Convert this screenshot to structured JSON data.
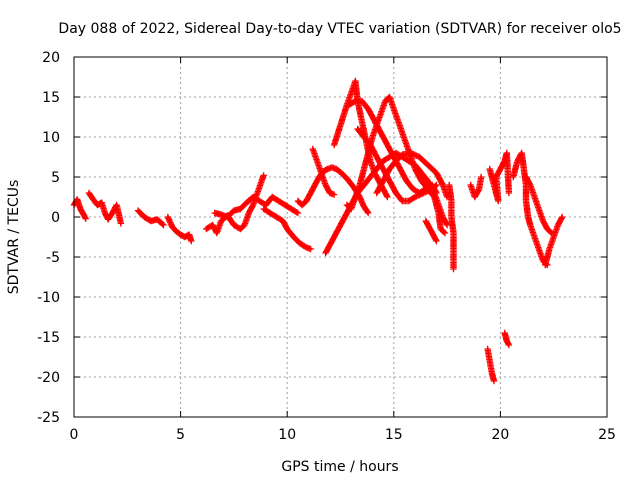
{
  "chart_data": {
    "type": "scatter",
    "title": "Day 088 of 2022, Sidereal Day-to-day VTEC variation (SDTVAR) for receiver olo5",
    "xlabel": "GPS time / hours",
    "ylabel": "SDTVAR / TECUs",
    "xlim": [
      0,
      25
    ],
    "ylim": [
      -25,
      20
    ],
    "xticks": [
      0,
      5,
      10,
      15,
      20,
      25
    ],
    "yticks": [
      -25,
      -20,
      -15,
      -10,
      -5,
      0,
      5,
      10,
      15,
      20
    ],
    "grid": true,
    "marker": "+",
    "series": [
      {
        "name": "SDTVAR",
        "color": "#ff0000",
        "segments": [
          [
            [
              0.0,
              1.5
            ],
            [
              0.15,
              2.2
            ],
            [
              0.3,
              1.0
            ],
            [
              0.45,
              0.3
            ],
            [
              0.55,
              -0.2
            ]
          ],
          [
            [
              0.7,
              3.0
            ],
            [
              0.9,
              2.2
            ],
            [
              1.1,
              1.5
            ],
            [
              1.3,
              1.8
            ],
            [
              1.45,
              0.5
            ],
            [
              1.6,
              -0.3
            ],
            [
              1.8,
              0.5
            ],
            [
              2.0,
              1.5
            ],
            [
              2.2,
              -0.8
            ]
          ],
          [
            [
              3.0,
              0.8
            ],
            [
              3.3,
              0.0
            ],
            [
              3.6,
              -0.5
            ],
            [
              3.9,
              -0.3
            ],
            [
              4.2,
              -1.0
            ]
          ],
          [
            [
              4.4,
              0.0
            ],
            [
              4.6,
              -1.2
            ],
            [
              4.8,
              -1.8
            ],
            [
              5.0,
              -2.2
            ],
            [
              5.2,
              -2.5
            ],
            [
              5.4,
              -2.2
            ],
            [
              5.5,
              -3.0
            ]
          ],
          [
            [
              6.2,
              -1.5
            ],
            [
              6.5,
              -1.0
            ],
            [
              6.7,
              -2.0
            ],
            [
              6.9,
              -0.5
            ],
            [
              7.2,
              0.2
            ],
            [
              7.5,
              -1.0
            ],
            [
              7.8,
              -1.5
            ],
            [
              8.0,
              -1.0
            ],
            [
              8.2,
              0.5
            ],
            [
              8.4,
              1.5
            ],
            [
              8.6,
              3.0
            ],
            [
              8.8,
              4.5
            ],
            [
              8.9,
              5.2
            ]
          ],
          [
            [
              6.6,
              0.5
            ],
            [
              6.9,
              0.3
            ],
            [
              7.2,
              0.0
            ],
            [
              7.5,
              0.8
            ],
            [
              7.8,
              1.0
            ],
            [
              8.1,
              1.8
            ],
            [
              8.4,
              2.5
            ],
            [
              8.7,
              2.0
            ],
            [
              9.0,
              1.5
            ],
            [
              9.3,
              2.5
            ],
            [
              9.6,
              2.0
            ],
            [
              9.9,
              1.5
            ],
            [
              10.2,
              1.0
            ],
            [
              10.5,
              0.5
            ]
          ],
          [
            [
              8.9,
              1.0
            ],
            [
              9.2,
              0.5
            ],
            [
              9.5,
              0.0
            ],
            [
              9.8,
              -0.5
            ],
            [
              10.0,
              -1.5
            ],
            [
              10.3,
              -2.5
            ],
            [
              10.6,
              -3.3
            ],
            [
              10.9,
              -3.8
            ],
            [
              11.1,
              -4.0
            ]
          ],
          [
            [
              10.5,
              2.0
            ],
            [
              10.7,
              1.5
            ],
            [
              10.9,
              2.0
            ],
            [
              11.1,
              3.0
            ],
            [
              11.3,
              4.0
            ],
            [
              11.5,
              5.0
            ],
            [
              11.7,
              5.7
            ],
            [
              11.9,
              6.0
            ],
            [
              12.1,
              6.2
            ],
            [
              12.3,
              6.0
            ],
            [
              12.5,
              5.6
            ],
            [
              12.8,
              4.8
            ],
            [
              13.1,
              3.8
            ],
            [
              13.4,
              2.5
            ],
            [
              13.6,
              1.3
            ],
            [
              13.8,
              0.5
            ]
          ],
          [
            [
              11.2,
              8.5
            ],
            [
              11.4,
              7.0
            ],
            [
              11.6,
              5.5
            ],
            [
              11.8,
              4.0
            ],
            [
              12.0,
              3.0
            ],
            [
              12.2,
              2.8
            ]
          ],
          [
            [
              11.8,
              -4.5
            ],
            [
              12.1,
              -3.0
            ],
            [
              12.4,
              -1.5
            ],
            [
              12.7,
              0.0
            ],
            [
              12.9,
              1.0
            ],
            [
              13.1,
              2.0
            ],
            [
              13.3,
              3.0
            ],
            [
              13.6,
              4.0
            ],
            [
              13.9,
              5.0
            ],
            [
              14.2,
              6.0
            ],
            [
              14.5,
              7.0
            ],
            [
              14.8,
              7.5
            ],
            [
              15.1,
              8.0
            ],
            [
              15.4,
              7.5
            ],
            [
              15.7,
              7.0
            ],
            [
              16.0,
              6.5
            ],
            [
              16.3,
              5.5
            ],
            [
              16.6,
              4.5
            ],
            [
              16.9,
              3.0
            ],
            [
              17.1,
              1.5
            ],
            [
              17.3,
              0.0
            ],
            [
              17.5,
              -1.0
            ]
          ],
          [
            [
              12.2,
              9.0
            ],
            [
              12.5,
              11.5
            ],
            [
              12.8,
              14.0
            ],
            [
              13.0,
              15.5
            ],
            [
              13.2,
              17.0
            ],
            [
              13.3,
              14.5
            ],
            [
              13.5,
              12.0
            ],
            [
              13.7,
              9.5
            ],
            [
              13.9,
              7.0
            ],
            [
              14.1,
              5.5
            ],
            [
              14.3,
              4.5
            ],
            [
              14.5,
              3.5
            ],
            [
              14.7,
              2.5
            ]
          ],
          [
            [
              12.8,
              1.5
            ],
            [
              13.0,
              1.0
            ],
            [
              13.2,
              2.5
            ],
            [
              13.4,
              4.0
            ],
            [
              13.6,
              6.0
            ],
            [
              13.8,
              8.0
            ],
            [
              14.0,
              10.0
            ],
            [
              14.2,
              11.5
            ],
            [
              14.4,
              13.0
            ],
            [
              14.6,
              14.5
            ],
            [
              14.8,
              15.0
            ],
            [
              15.0,
              13.5
            ],
            [
              15.2,
              12.0
            ],
            [
              15.4,
              10.5
            ],
            [
              15.6,
              9.0
            ],
            [
              15.8,
              7.5
            ],
            [
              16.0,
              6.0
            ],
            [
              16.3,
              4.5
            ],
            [
              16.6,
              3.5
            ],
            [
              16.9,
              2.5
            ],
            [
              17.1,
              0.5
            ],
            [
              17.2,
              -1.5
            ],
            [
              17.4,
              -2.0
            ]
          ],
          [
            [
              12.9,
              14.0
            ],
            [
              13.2,
              14.5
            ],
            [
              13.5,
              14.5
            ],
            [
              13.8,
              13.5
            ],
            [
              14.1,
              12.0
            ],
            [
              14.4,
              10.5
            ],
            [
              14.7,
              9.0
            ],
            [
              15.0,
              7.5
            ],
            [
              15.3,
              6.0
            ],
            [
              15.6,
              4.5
            ],
            [
              15.9,
              3.5
            ],
            [
              16.2,
              3.0
            ],
            [
              16.5,
              3.5
            ],
            [
              16.8,
              4.0
            ],
            [
              17.0,
              3.0
            ]
          ],
          [
            [
              13.3,
              11.0
            ],
            [
              13.6,
              10.0
            ],
            [
              13.9,
              9.0
            ],
            [
              14.2,
              7.5
            ],
            [
              14.5,
              6.0
            ],
            [
              14.8,
              4.5
            ],
            [
              15.1,
              3.0
            ],
            [
              15.4,
              2.0
            ],
            [
              15.7,
              2.0
            ],
            [
              16.0,
              2.5
            ],
            [
              16.4,
              3.0
            ],
            [
              16.8,
              3.5
            ],
            [
              17.0,
              4.0
            ]
          ],
          [
            [
              14.2,
              3.0
            ],
            [
              14.5,
              4.5
            ],
            [
              14.8,
              6.0
            ],
            [
              15.1,
              7.0
            ],
            [
              15.4,
              7.8
            ],
            [
              15.8,
              8.0
            ],
            [
              16.2,
              7.5
            ],
            [
              16.6,
              6.5
            ],
            [
              17.0,
              5.5
            ],
            [
              17.3,
              4.0
            ],
            [
              17.5,
              2.5
            ]
          ],
          [
            [
              16.5,
              -0.5
            ],
            [
              16.7,
              -1.5
            ],
            [
              16.9,
              -2.5
            ],
            [
              17.0,
              -3.0
            ]
          ],
          [
            [
              17.6,
              4.0
            ],
            [
              17.7,
              2.0
            ],
            [
              17.7,
              0.0
            ],
            [
              17.8,
              -2.0
            ],
            [
              17.8,
              -4.5
            ],
            [
              17.8,
              -6.5
            ]
          ],
          [
            [
              18.6,
              4.0
            ],
            [
              18.8,
              2.5
            ],
            [
              19.0,
              3.5
            ],
            [
              19.1,
              5.0
            ]
          ],
          [
            [
              19.4,
              -16.5
            ],
            [
              19.5,
              -18.0
            ],
            [
              19.6,
              -19.5
            ],
            [
              19.7,
              -20.5
            ]
          ],
          [
            [
              19.5,
              6.0
            ],
            [
              19.7,
              4.0
            ],
            [
              19.9,
              2.0
            ],
            [
              19.8,
              5.0
            ],
            [
              20.0,
              6.0
            ],
            [
              20.2,
              7.0
            ],
            [
              20.3,
              8.0
            ],
            [
              20.4,
              3.0
            ]
          ],
          [
            [
              20.2,
              -14.5
            ],
            [
              20.3,
              -15.5
            ],
            [
              20.4,
              -16.0
            ]
          ],
          [
            [
              20.6,
              5.0
            ],
            [
              20.8,
              7.0
            ],
            [
              21.0,
              8.0
            ],
            [
              21.1,
              6.0
            ],
            [
              21.2,
              4.0
            ],
            [
              21.2,
              2.0
            ],
            [
              21.3,
              0.0
            ],
            [
              21.4,
              -1.0
            ],
            [
              21.6,
              -2.5
            ],
            [
              21.8,
              -4.0
            ],
            [
              22.0,
              -5.5
            ],
            [
              22.2,
              -6.0
            ]
          ],
          [
            [
              21.2,
              5.0
            ],
            [
              21.4,
              4.0
            ],
            [
              21.6,
              2.5
            ],
            [
              21.8,
              1.0
            ],
            [
              22.0,
              -0.5
            ],
            [
              22.2,
              -1.5
            ],
            [
              22.4,
              -2.0
            ]
          ],
          [
            [
              22.1,
              -6.0
            ],
            [
              22.3,
              -4.0
            ],
            [
              22.5,
              -2.5
            ],
            [
              22.7,
              -1.0
            ],
            [
              22.9,
              0.0
            ]
          ]
        ]
      }
    ]
  }
}
